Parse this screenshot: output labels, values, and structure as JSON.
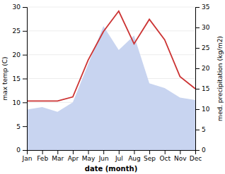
{
  "chart_data": {
    "type": "area",
    "xlabel": "date (month)",
    "ylabel": "max temp (C)",
    "y2label": "med. precipitation (kg/m2)",
    "categories": [
      "Jan",
      "Feb",
      "Mar",
      "Apr",
      "May",
      "Jun",
      "Jul",
      "Aug",
      "Sep",
      "Oct",
      "Nov",
      "Dec"
    ],
    "series": [
      {
        "type": "area",
        "color": "#c8d4f0",
        "values": [
          8.5,
          9.0,
          8.0,
          10.0,
          18.0,
          26.0,
          21.0,
          24.0,
          14.0,
          13.0,
          11.0,
          10.5
        ]
      },
      {
        "type": "line",
        "color": "#cc3333",
        "axis": "y2",
        "values": [
          12,
          12,
          12,
          13,
          22,
          29,
          34,
          26,
          32,
          27,
          18,
          15
        ]
      }
    ],
    "ylim": [
      0,
      30
    ],
    "yticks": [
      0,
      5,
      10,
      15,
      20,
      25,
      30
    ],
    "y2lim": [
      0,
      35
    ],
    "y2ticks": [
      0,
      5,
      10,
      15,
      20,
      25,
      30,
      35
    ],
    "grid": true
  }
}
